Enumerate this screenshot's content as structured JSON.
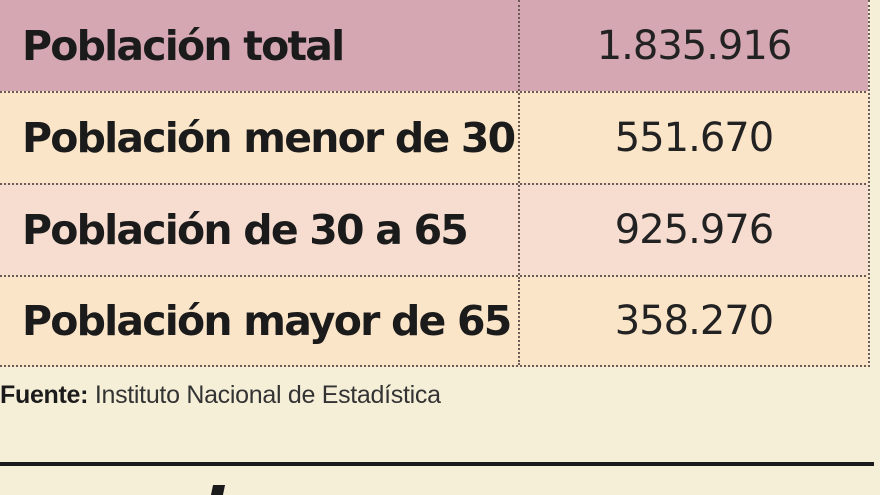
{
  "table": {
    "rows": [
      {
        "label": "Población total",
        "value": "1.835.916"
      },
      {
        "label": "Población menor de 30",
        "value": "551.670"
      },
      {
        "label": "Población de 30 a 65",
        "value": "925.976"
      },
      {
        "label": "Población mayor de 65",
        "value": "358.270"
      }
    ]
  },
  "source": {
    "label": "Fuente:",
    "text": "Instituto Nacional de Estadística"
  },
  "colors": {
    "header_row": "#d4a7b2",
    "row_light": "#fbe5c8",
    "row_pink": "#f7dcd0",
    "page_background": "#f6efd8"
  }
}
